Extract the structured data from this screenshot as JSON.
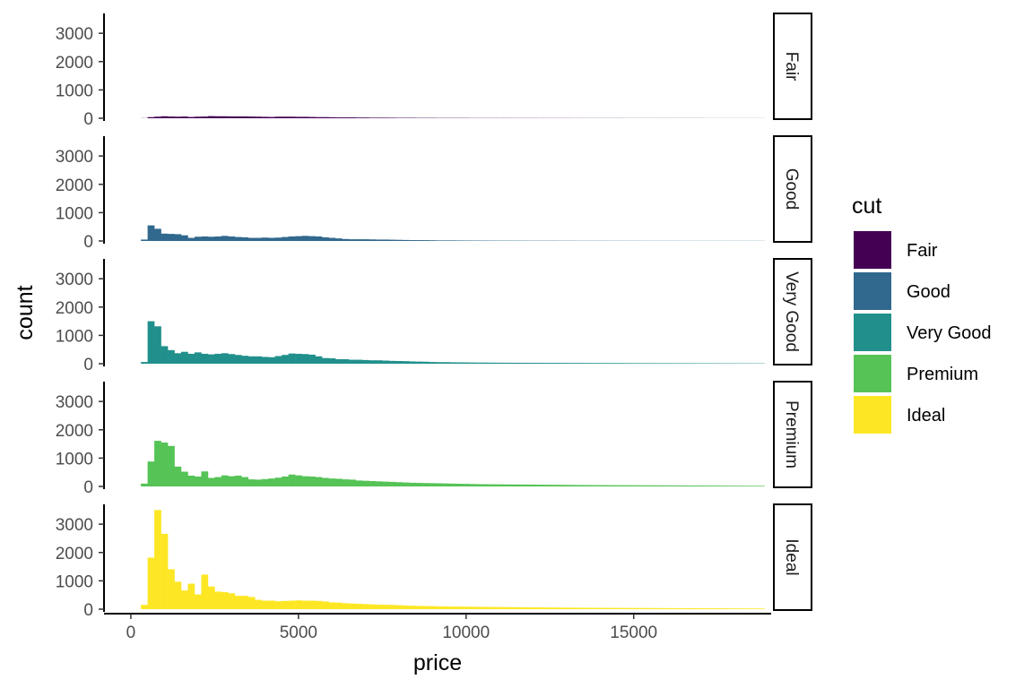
{
  "chart_data": {
    "type": "histogram",
    "facet_variable": "cut",
    "xlabel": "price",
    "ylabel": "count",
    "x_ticks": [
      0,
      5000,
      10000,
      15000
    ],
    "y_ticks": [
      0,
      1000,
      2000,
      3000
    ],
    "xlim": [
      -800,
      19100
    ],
    "ylim": [
      0,
      3700
    ],
    "bin_width": 200,
    "bin_start": 300,
    "legend": {
      "title": "cut",
      "position": "right",
      "items": [
        {
          "label": "Fair",
          "color": "#440154"
        },
        {
          "label": "Good",
          "color": "#31688E"
        },
        {
          "label": "Very Good",
          "color": "#21908C"
        },
        {
          "label": "Premium",
          "color": "#55C356"
        },
        {
          "label": "Ideal",
          "color": "#FDE725"
        }
      ]
    },
    "grid": false,
    "series": [
      {
        "name": "Fair",
        "color": "#440154",
        "values": [
          5,
          40,
          55,
          70,
          60,
          55,
          60,
          45,
          55,
          60,
          75,
          70,
          70,
          65,
          65,
          65,
          60,
          55,
          50,
          45,
          55,
          55,
          55,
          50,
          50,
          45,
          40,
          40,
          35,
          30,
          30,
          30,
          25,
          25,
          20,
          20,
          20,
          18,
          15,
          15,
          15,
          12,
          12,
          12,
          10,
          10,
          10,
          10,
          10,
          8,
          8,
          8,
          8,
          8,
          8,
          7,
          7,
          7,
          7,
          6,
          6,
          6,
          6,
          6,
          5,
          5,
          5,
          5,
          5,
          5,
          5,
          5,
          4,
          4,
          4,
          4,
          4,
          4,
          4,
          4,
          4,
          4,
          4,
          4,
          3,
          3,
          3,
          3,
          3,
          3,
          3,
          3,
          3
        ]
      },
      {
        "name": "Good",
        "color": "#31688E",
        "values": [
          50,
          550,
          430,
          260,
          250,
          240,
          200,
          110,
          150,
          160,
          150,
          160,
          180,
          160,
          140,
          130,
          110,
          110,
          120,
          110,
          120,
          140,
          160,
          170,
          180,
          170,
          160,
          130,
          110,
          90,
          70,
          60,
          60,
          60,
          55,
          50,
          50,
          45,
          40,
          35,
          30,
          30,
          28,
          25,
          20,
          20,
          20,
          18,
          16,
          15,
          15,
          14,
          13,
          12,
          12,
          12,
          11,
          11,
          10,
          10,
          10,
          10,
          9,
          9,
          9,
          8,
          8,
          8,
          8,
          8,
          7,
          7,
          7,
          7,
          7,
          6,
          6,
          6,
          6,
          6,
          6,
          5,
          5,
          5,
          5,
          5,
          5,
          5,
          5,
          5,
          5,
          5,
          5
        ]
      },
      {
        "name": "Very Good",
        "color": "#21908C",
        "values": [
          60,
          1500,
          1320,
          620,
          480,
          370,
          420,
          350,
          400,
          350,
          330,
          350,
          370,
          340,
          310,
          280,
          260,
          260,
          240,
          230,
          270,
          310,
          360,
          350,
          340,
          320,
          260,
          200,
          190,
          160,
          160,
          140,
          140,
          130,
          120,
          120,
          110,
          100,
          95,
          90,
          80,
          75,
          70,
          60,
          55,
          55,
          50,
          48,
          45,
          42,
          40,
          40,
          38,
          36,
          35,
          34,
          33,
          32,
          32,
          31,
          30,
          30,
          29,
          28,
          27,
          27,
          26,
          25,
          25,
          24,
          23,
          23,
          22,
          21,
          21,
          20,
          20,
          19,
          19,
          18,
          18,
          17,
          17,
          16,
          16,
          15,
          15,
          14,
          14,
          13,
          13,
          12,
          12
        ]
      },
      {
        "name": "Premium",
        "color": "#55C356",
        "values": [
          100,
          880,
          1610,
          1550,
          1430,
          700,
          520,
          380,
          350,
          530,
          300,
          330,
          390,
          360,
          380,
          330,
          250,
          240,
          260,
          280,
          310,
          350,
          420,
          390,
          360,
          350,
          330,
          300,
          280,
          270,
          250,
          240,
          210,
          200,
          190,
          180,
          170,
          160,
          150,
          140,
          130,
          125,
          120,
          115,
          110,
          105,
          100,
          95,
          90,
          85,
          80,
          78,
          76,
          74,
          72,
          70,
          68,
          66,
          64,
          62,
          60,
          58,
          56,
          54,
          52,
          50,
          48,
          47,
          46,
          45,
          44,
          43,
          42,
          41,
          40,
          39,
          38,
          37,
          36,
          35,
          34,
          33,
          32,
          31,
          30,
          29,
          28,
          27,
          26,
          25,
          24,
          23,
          22
        ]
      },
      {
        "name": "Ideal",
        "color": "#FDE725",
        "values": [
          150,
          1820,
          3500,
          2660,
          1410,
          970,
          660,
          900,
          520,
          1220,
          800,
          620,
          600,
          560,
          470,
          470,
          430,
          330,
          300,
          300,
          280,
          290,
          300,
          310,
          300,
          300,
          290,
          270,
          240,
          230,
          210,
          200,
          190,
          180,
          170,
          160,
          155,
          150,
          140,
          130,
          120,
          115,
          110,
          105,
          100,
          95,
          92,
          90,
          88,
          85,
          82,
          80,
          78,
          75,
          72,
          70,
          68,
          66,
          64,
          62,
          60,
          58,
          56,
          54,
          52,
          50,
          49,
          48,
          47,
          46,
          45,
          44,
          43,
          42,
          41,
          40,
          39,
          38,
          37,
          36,
          35,
          34,
          33,
          32,
          31,
          30,
          29,
          28,
          27,
          26,
          25,
          24,
          23
        ]
      }
    ]
  }
}
